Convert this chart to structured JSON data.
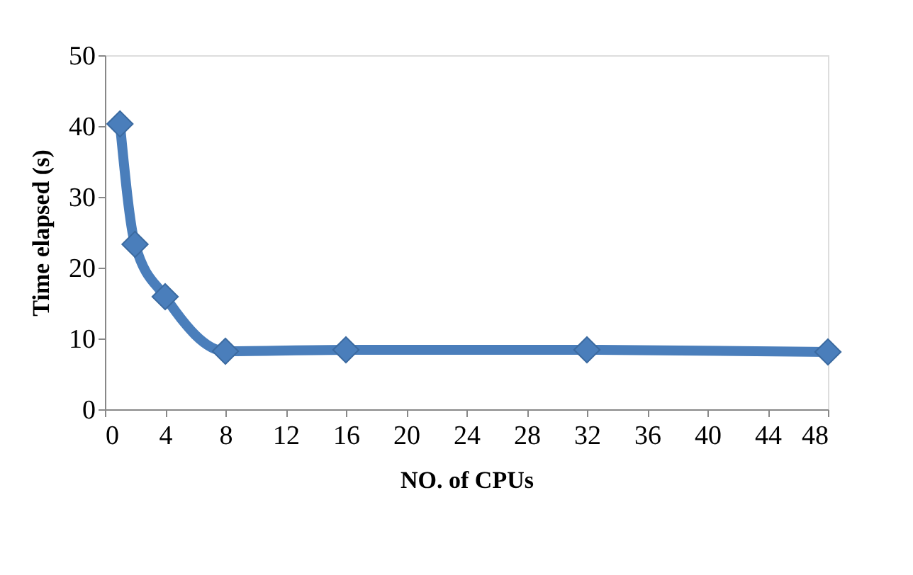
{
  "chart_data": {
    "type": "line",
    "xlabel": "NO. of CPUs",
    "ylabel": "Time elapsed (s)",
    "x": [
      1,
      2,
      4,
      8,
      16,
      32,
      48
    ],
    "series": [
      {
        "color": "#4a7ebb",
        "values": [
          40.3,
          23.3,
          15.9,
          8.2,
          8.4,
          8.4,
          8.1
        ]
      }
    ],
    "xlim": [
      0,
      48
    ],
    "xticks": [
      0,
      4,
      8,
      12,
      16,
      20,
      24,
      28,
      32,
      36,
      40,
      44,
      48
    ],
    "ylim": [
      0,
      50
    ],
    "yticks": [
      0,
      10,
      20,
      30,
      40,
      50
    ],
    "grid": false,
    "legend": false,
    "marker": "diamond",
    "line_style": "solid"
  }
}
